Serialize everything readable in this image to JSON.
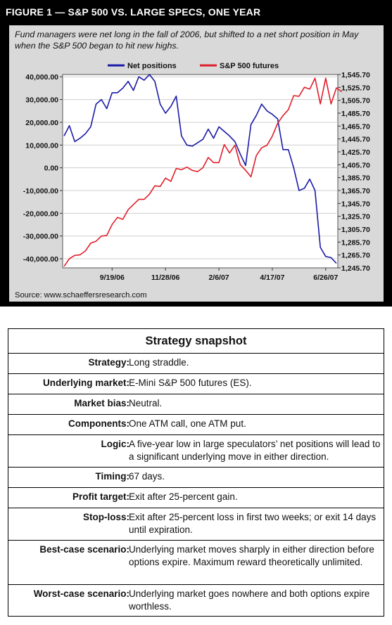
{
  "figure": {
    "title": "FIGURE 1 — S&P 500 VS. LARGE SPECS, ONE YEAR",
    "caption": "Fund managers were net long in the fall of 2006, but shifted to a net short position in May when the S&P 500 began to hit new highs.",
    "source": "Source: www.schaeffersresearch.com"
  },
  "chart_data": {
    "type": "line",
    "legend_position": "top",
    "grid": true,
    "x_tick_labels": [
      "9/19/06",
      "11/28/06",
      "2/6/07",
      "4/17/07",
      "6/26/07"
    ],
    "x_tick_index": [
      9,
      19,
      29,
      39,
      49
    ],
    "left_axis": {
      "ylim": [
        -44000,
        41000
      ],
      "ticks": [
        40000,
        30000,
        20000,
        10000,
        0,
        -10000,
        -20000,
        -30000,
        -40000
      ],
      "tick_labels": [
        "40,000.00",
        "30,000.00",
        "20,000.00",
        "10,000.00",
        "0.00",
        "-10,000.00",
        "-20,000.00",
        "-30,000.00",
        "-40,000.00"
      ]
    },
    "right_axis": {
      "ylim": [
        1245.7,
        1545.7
      ],
      "ticks": [
        1545.7,
        1525.7,
        1505.7,
        1485.7,
        1465.7,
        1445.7,
        1425.7,
        1405.7,
        1385.7,
        1365.7,
        1345.7,
        1325.7,
        1305.7,
        1285.7,
        1265.7,
        1245.7
      ],
      "tick_labels": [
        "1,545.70",
        "1,525.70",
        "1,505.70",
        "1,485.70",
        "1,465.70",
        "1,445.70",
        "1,425.70",
        "1,405.70",
        "1,385.70",
        "1,365.70",
        "1,345.70",
        "1,325.70",
        "1,305.70",
        "1,285.70",
        "1,265.70",
        "1,245.70"
      ]
    },
    "series": [
      {
        "name": "Net positions",
        "axis": "left",
        "color": "#1a1aa8",
        "values": [
          14000,
          18500,
          11500,
          13000,
          15000,
          18000,
          28000,
          30000,
          26000,
          33000,
          33000,
          35000,
          38000,
          34000,
          40000,
          38500,
          41000,
          38000,
          28000,
          24000,
          27000,
          31500,
          14000,
          10000,
          9500,
          11000,
          12500,
          17000,
          13000,
          18000,
          16000,
          14000,
          11500,
          6000,
          1000,
          19000,
          23000,
          28000,
          25000,
          23500,
          21500,
          8000,
          8000,
          0,
          -10000,
          -9000,
          -5000,
          -10000,
          -35000,
          -39000,
          -39500,
          -42000
        ]
      },
      {
        "name": "S&P 500 futures",
        "axis": "right",
        "color": "#e01e2a",
        "values": [
          1248,
          1260,
          1265,
          1266,
          1272,
          1284,
          1287,
          1295,
          1296,
          1313,
          1324,
          1321,
          1336,
          1344,
          1352,
          1352,
          1360,
          1373,
          1372,
          1385,
          1380,
          1400,
          1398,
          1402,
          1397,
          1395,
          1401,
          1417,
          1409,
          1409,
          1437,
          1424,
          1436,
          1406,
          1397,
          1387,
          1420,
          1432,
          1436,
          1450,
          1470,
          1482,
          1491,
          1513,
          1512,
          1526,
          1523,
          1540,
          1500,
          1540,
          1500,
          1525,
          1519
        ]
      }
    ]
  },
  "snapshot": {
    "title": "Strategy snapshot",
    "rows": [
      {
        "label": "Strategy:",
        "value": "Long straddle."
      },
      {
        "label": "Underlying market:",
        "value": "E-Mini S&P 500 futures (ES)."
      },
      {
        "label": "Market bias:",
        "value": "Neutral."
      },
      {
        "label": "Components:",
        "value": "One ATM call, one ATM put."
      },
      {
        "label": "Logic:",
        "value": "A five-year low in large speculators’ net positions will lead to a significant underlying move in either direction."
      },
      {
        "label": "Timing:",
        "value": "67 days."
      },
      {
        "label": "Profit target:",
        "value": "Exit after 25-percent gain."
      },
      {
        "label": "Stop-loss:",
        "value": "Exit after 25-percent loss in first two weeks; or exit 14 days until expiration."
      },
      {
        "label": "Best-case scenario:",
        "value": "Underlying market moves sharply in either direction before options expire. Maximum reward theoretically unlimited."
      },
      {
        "label": "Worst-case scenario:",
        "value": "Underlying market goes nowhere and both options expire worthless."
      }
    ]
  }
}
